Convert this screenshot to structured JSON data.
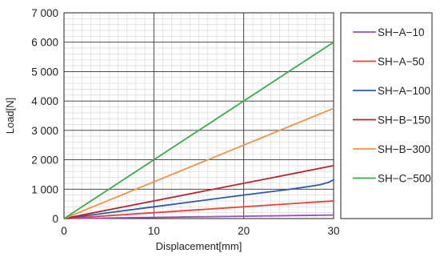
{
  "chart_data": {
    "type": "line",
    "title": "",
    "xlabel": "Displacement[mm]",
    "ylabel": "Load[N]",
    "xlim": [
      0,
      30
    ],
    "ylim": [
      0,
      7000
    ],
    "x_ticks": [
      0,
      10,
      20,
      30
    ],
    "x_tick_labels": [
      "0",
      "10",
      "20",
      "30"
    ],
    "y_ticks": [
      0,
      1000,
      2000,
      3000,
      4000,
      5000,
      6000,
      7000
    ],
    "y_tick_labels": [
      "0",
      "1 000",
      "2 000",
      "3 000",
      "4 000",
      "5 000",
      "6 000",
      "7 000"
    ],
    "grid": true,
    "legend_position": "right",
    "series": [
      {
        "name": "SH−A−10",
        "color": "#9b4fb8",
        "x": [
          0,
          30
        ],
        "y": [
          0,
          120
        ]
      },
      {
        "name": "SH−A−50",
        "color": "#e8403a",
        "x": [
          0,
          30
        ],
        "y": [
          0,
          600
        ]
      },
      {
        "name": "SH−A−100",
        "color": "#2b5aaa",
        "x": [
          0,
          5,
          10,
          15,
          20,
          25,
          27,
          28.5,
          29.5,
          30
        ],
        "y": [
          0,
          200,
          400,
          600,
          800,
          990,
          1080,
          1150,
          1240,
          1320
        ]
      },
      {
        "name": "SH−B−150",
        "color": "#b5262a",
        "x": [
          0,
          30
        ],
        "y": [
          0,
          1800
        ]
      },
      {
        "name": "SH−B−300",
        "color": "#f39248",
        "x": [
          0,
          30
        ],
        "y": [
          0,
          3750
        ]
      },
      {
        "name": "SH−C−500",
        "color": "#3aac4c",
        "x": [
          0,
          30
        ],
        "y": [
          0,
          6000
        ]
      }
    ]
  }
}
